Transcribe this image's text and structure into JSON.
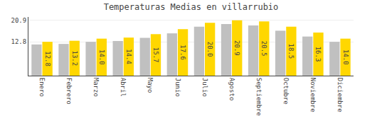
{
  "chart_data": {
    "type": "bar",
    "title": "Temperaturas Medias en villarrubio",
    "categories": [
      "Enero",
      "Febrero",
      "Marzo",
      "Abril",
      "Mayo",
      "Junio",
      "Julio",
      "Agosto",
      "Septiembre",
      "Octubre",
      "Noviembre",
      "Diciembre"
    ],
    "series": [
      {
        "color": "#C0C0C0",
        "values": [
          11.8,
          12.0,
          12.8,
          13.1,
          14.3,
          16.0,
          18.5,
          19.5,
          19.0,
          17.0,
          14.8,
          12.8
        ]
      },
      {
        "color": "#FFD700",
        "values": [
          12.8,
          13.2,
          14.0,
          14.4,
          15.7,
          17.6,
          20.0,
          20.9,
          20.5,
          18.5,
          16.3,
          14.0
        ],
        "data_labels": true,
        "value_labels": [
          "12.8",
          "13.2",
          "14.0",
          "14.4",
          "15.7",
          "17.6",
          "20.0",
          "20.9",
          "20.5",
          "18.5",
          "16.3",
          "14.0"
        ]
      }
    ],
    "ylim": [
      0,
      22.2
    ],
    "yticks": [
      12.8,
      20.9
    ],
    "y2lim": [
      0,
      22.2
    ],
    "y2ticks": [
      12.8,
      20.9
    ],
    "grid": true
  }
}
